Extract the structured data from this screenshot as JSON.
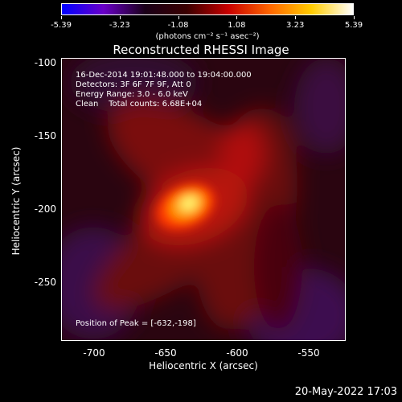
{
  "colorbar": {
    "tick_labels": [
      "-5.39",
      "-3.23",
      "-1.08",
      "1.08",
      "3.23",
      "5.39"
    ],
    "units": "(photons cm⁻² s⁻¹ asec⁻²)",
    "colors": [
      "#0000ff",
      "#6a00c8",
      "#1a0018",
      "#3a0000",
      "#c80000",
      "#ff6600",
      "#ffcc00",
      "#ffffff"
    ]
  },
  "plot": {
    "title": "Reconstructed RHESSI Image",
    "annotations": [
      "16-Dec-2014 19:01:48.000 to 19:04:00.000",
      "Detectors: 3F 6F 7F 9F, Att 0",
      "Energy Range: 3.0 - 6.0 keV",
      "Clean    Total counts: 6.68E+04"
    ],
    "peak_label": "Position of Peak = [-632,-198]",
    "x_axis_label": "Heliocentric X (arcsec)",
    "y_axis_label": "Heliocentric Y (arcsec)",
    "x_tick_labels": [
      "-700",
      "-650",
      "-600",
      "-550"
    ],
    "y_tick_labels": [
      "-100",
      "-150",
      "-200",
      "-250"
    ]
  },
  "footer": {
    "timestamp": "20-May-2022 17:03"
  }
}
